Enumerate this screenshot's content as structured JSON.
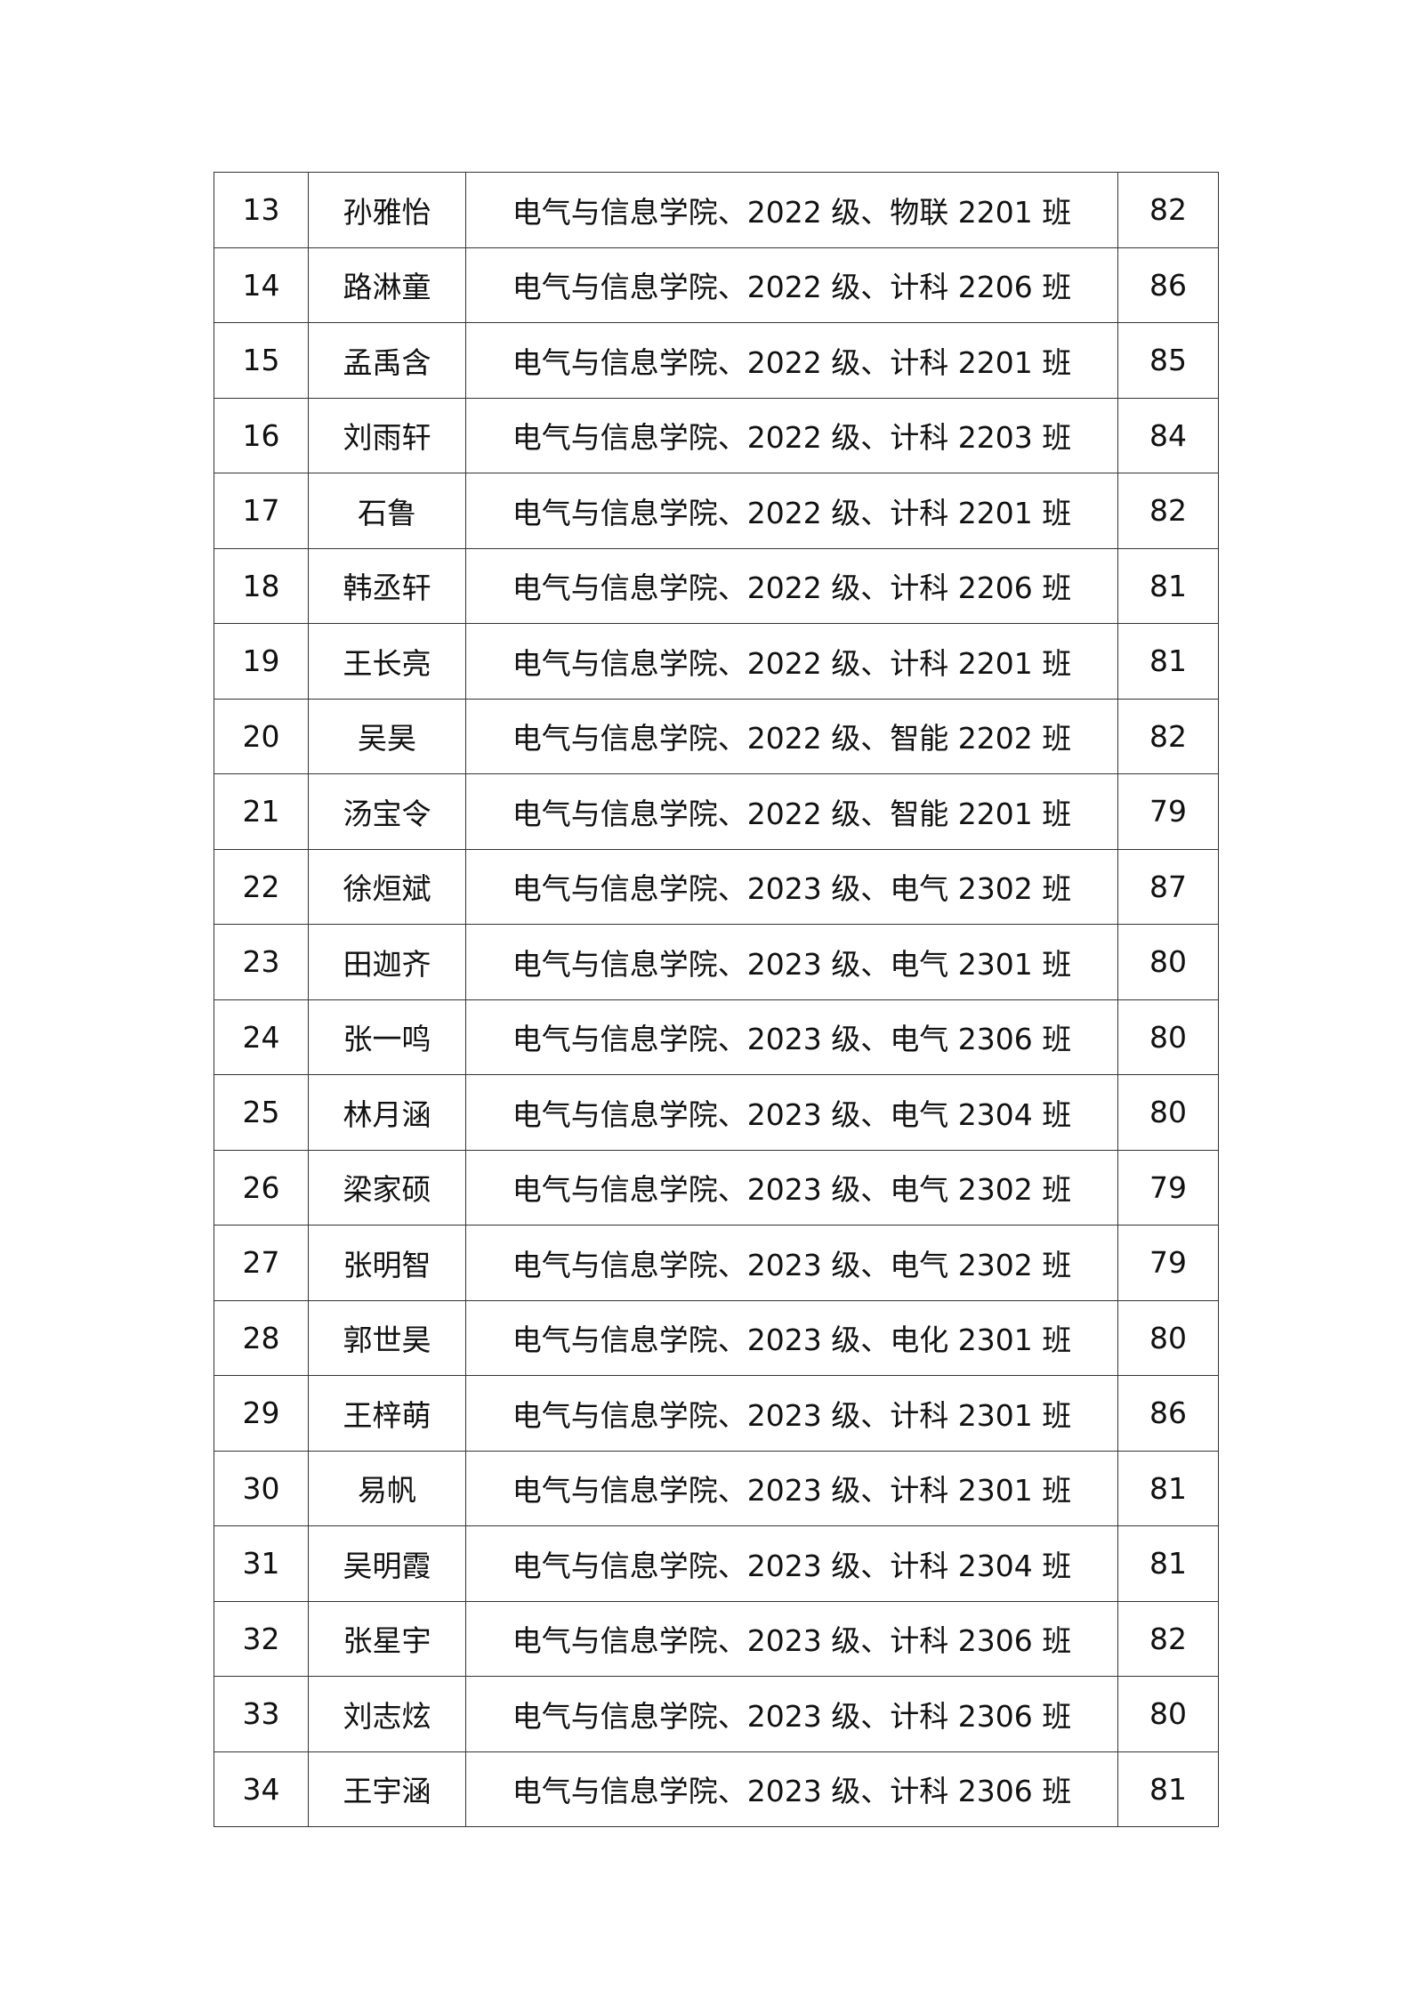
{
  "rows": [
    {
      "no": "13",
      "name": "孙雅怡",
      "unit": "电气与信息学院、2022 级、物联 2201 班",
      "score": "82"
    },
    {
      "no": "14",
      "name": "路淋童",
      "unit": "电气与信息学院、2022 级、计科 2206 班",
      "score": "86"
    },
    {
      "no": "15",
      "name": "孟禹含",
      "unit": "电气与信息学院、2022 级、计科 2201 班",
      "score": "85"
    },
    {
      "no": "16",
      "name": "刘雨轩",
      "unit": "电气与信息学院、2022 级、计科 2203 班",
      "score": "84"
    },
    {
      "no": "17",
      "name": "石鲁",
      "unit": "电气与信息学院、2022 级、计科 2201 班",
      "score": "82"
    },
    {
      "no": "18",
      "name": "韩丞轩",
      "unit": "电气与信息学院、2022 级、计科 2206 班",
      "score": "81"
    },
    {
      "no": "19",
      "name": "王长亮",
      "unit": "电气与信息学院、2022 级、计科 2201 班",
      "score": "81"
    },
    {
      "no": "20",
      "name": "吴昊",
      "unit": "电气与信息学院、2022 级、智能 2202 班",
      "score": "82"
    },
    {
      "no": "21",
      "name": "汤宝令",
      "unit": "电气与信息学院、2022 级、智能 2201 班",
      "score": "79"
    },
    {
      "no": "22",
      "name": "徐烜斌",
      "unit": "电气与信息学院、2023 级、电气 2302 班",
      "score": "87"
    },
    {
      "no": "23",
      "name": "田迦齐",
      "unit": "电气与信息学院、2023 级、电气 2301 班",
      "score": "80"
    },
    {
      "no": "24",
      "name": "张一鸣",
      "unit": "电气与信息学院、2023 级、电气 2306 班",
      "score": "80"
    },
    {
      "no": "25",
      "name": "林月涵",
      "unit": "电气与信息学院、2023 级、电气 2304 班",
      "score": "80"
    },
    {
      "no": "26",
      "name": "梁家硕",
      "unit": "电气与信息学院、2023 级、电气 2302 班",
      "score": "79"
    },
    {
      "no": "27",
      "name": "张明智",
      "unit": "电气与信息学院、2023 级、电气 2302 班",
      "score": "79"
    },
    {
      "no": "28",
      "name": "郭世昊",
      "unit": "电气与信息学院、2023 级、电化 2301 班",
      "score": "80"
    },
    {
      "no": "29",
      "name": "王梓萌",
      "unit": "电气与信息学院、2023 级、计科 2301 班",
      "score": "86"
    },
    {
      "no": "30",
      "name": "易帆",
      "unit": "电气与信息学院、2023 级、计科 2301 班",
      "score": "81"
    },
    {
      "no": "31",
      "name": "吴明霞",
      "unit": "电气与信息学院、2023 级、计科 2304 班",
      "score": "81"
    },
    {
      "no": "32",
      "name": "张星宇",
      "unit": "电气与信息学院、2023 级、计科 2306 班",
      "score": "82"
    },
    {
      "no": "33",
      "name": "刘志炫",
      "unit": "电气与信息学院、2023 级、计科 2306 班",
      "score": "80"
    },
    {
      "no": "34",
      "name": "王宇涵",
      "unit": "电气与信息学院、2023 级、计科 2306 班",
      "score": "81"
    }
  ]
}
